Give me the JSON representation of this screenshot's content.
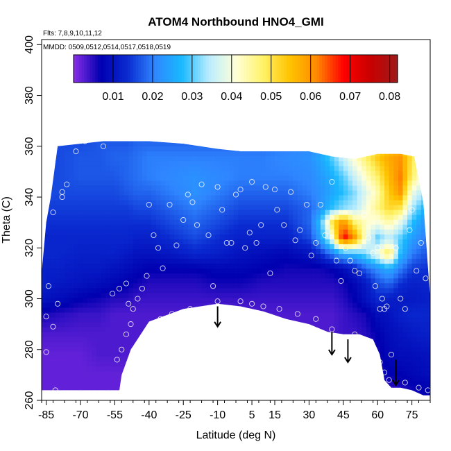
{
  "chart_data": {
    "type": "heatmap",
    "title": "ATOM4 Northbound HNO4_GMI",
    "subtitle_flights": "Flts: 7,8,9,10,11,12",
    "subtitle_dates": "MMDD: 0509,0512,0514,0517,0518,0519",
    "xlabel": "Latitude (deg N)",
    "ylabel": "Theta (C)",
    "xlim": [
      -87,
      83
    ],
    "ylim": [
      260,
      402
    ],
    "x_ticks": [
      -85,
      -70,
      -55,
      -40,
      -25,
      -10,
      5,
      15,
      30,
      45,
      60,
      75
    ],
    "y_ticks": [
      260,
      280,
      300,
      320,
      340,
      360,
      380,
      400
    ],
    "colorbar": {
      "min": 0.0,
      "max": 0.082,
      "ticks": [
        0.01,
        0.02,
        0.03,
        0.04,
        0.05,
        0.06,
        0.07,
        0.08
      ],
      "colors": [
        "#8b2fe8",
        "#0000b0",
        "#0a2ad0",
        "#2f86ff",
        "#19b8ff",
        "#b8ecff",
        "#ffffd9",
        "#fff36a",
        "#ffc400",
        "#ff8a00",
        "#ff0000",
        "#c80000",
        "#9e1b1b"
      ]
    },
    "field": {
      "lat": [
        -87,
        -80,
        -70,
        -62,
        -55,
        -50,
        -45,
        -40,
        -30,
        -20,
        -10,
        0,
        10,
        20,
        30,
        35,
        40,
        45,
        50,
        55,
        60,
        65,
        70,
        75,
        83
      ],
      "theta": [
        264,
        270,
        278,
        286,
        294,
        300,
        306,
        312,
        318,
        324,
        330,
        336,
        342,
        348,
        356,
        362
      ],
      "values": [
        [
          0.002,
          0.002,
          0.002,
          0.002,
          0.002,
          0.002,
          0.003,
          0.003,
          0.003,
          0.003,
          0.003,
          0.003,
          0.003,
          0.003,
          0.003,
          0.003,
          0.003,
          0.003,
          0.003,
          0.003,
          0.004,
          0.004,
          0.005,
          0.006,
          0.007
        ],
        [
          0.002,
          0.002,
          0.002,
          0.002,
          0.002,
          0.002,
          0.003,
          0.003,
          0.003,
          0.003,
          0.003,
          0.003,
          0.003,
          0.003,
          0.003,
          0.003,
          0.003,
          0.003,
          0.003,
          0.003,
          0.005,
          0.007,
          0.007,
          0.008,
          0.009
        ],
        [
          0.002,
          0.002,
          0.002,
          0.003,
          0.003,
          0.003,
          0.003,
          0.003,
          0.003,
          0.003,
          0.003,
          0.003,
          0.003,
          0.003,
          0.003,
          0.003,
          0.003,
          0.003,
          0.003,
          0.004,
          0.006,
          0.008,
          0.009,
          0.009,
          0.01
        ],
        [
          0.003,
          0.003,
          0.003,
          0.003,
          0.003,
          0.003,
          0.003,
          0.003,
          0.003,
          0.003,
          0.003,
          0.003,
          0.003,
          0.003,
          0.003,
          0.003,
          0.003,
          0.004,
          0.004,
          0.005,
          0.007,
          0.009,
          0.01,
          0.011,
          0.012
        ],
        [
          0.006,
          0.005,
          0.004,
          0.004,
          0.003,
          0.003,
          0.003,
          0.003,
          0.003,
          0.003,
          0.003,
          0.003,
          0.003,
          0.003,
          0.003,
          0.003,
          0.003,
          0.004,
          0.005,
          0.006,
          0.009,
          0.01,
          0.012,
          0.013,
          0.013
        ],
        [
          0.01,
          0.009,
          0.007,
          0.006,
          0.005,
          0.005,
          0.004,
          0.004,
          0.004,
          0.004,
          0.004,
          0.004,
          0.004,
          0.004,
          0.004,
          0.004,
          0.004,
          0.005,
          0.007,
          0.01,
          0.013,
          0.012,
          0.011,
          0.011,
          0.012
        ],
        [
          0.012,
          0.011,
          0.01,
          0.009,
          0.008,
          0.007,
          0.006,
          0.005,
          0.005,
          0.005,
          0.006,
          0.006,
          0.005,
          0.005,
          0.005,
          0.005,
          0.005,
          0.006,
          0.008,
          0.011,
          0.016,
          0.018,
          0.014,
          0.012,
          0.013
        ],
        [
          0.012,
          0.012,
          0.011,
          0.011,
          0.01,
          0.009,
          0.008,
          0.007,
          0.007,
          0.007,
          0.008,
          0.008,
          0.007,
          0.006,
          0.006,
          0.006,
          0.007,
          0.009,
          0.012,
          0.018,
          0.022,
          0.026,
          0.02,
          0.015,
          0.014
        ],
        [
          0.013,
          0.013,
          0.012,
          0.012,
          0.012,
          0.011,
          0.01,
          0.01,
          0.011,
          0.013,
          0.012,
          0.01,
          0.009,
          0.008,
          0.01,
          0.014,
          0.02,
          0.026,
          0.028,
          0.032,
          0.04,
          0.05,
          0.028,
          0.02,
          0.016
        ],
        [
          0.013,
          0.013,
          0.013,
          0.013,
          0.013,
          0.013,
          0.012,
          0.012,
          0.014,
          0.016,
          0.014,
          0.012,
          0.012,
          0.012,
          0.016,
          0.024,
          0.04,
          0.07,
          0.06,
          0.04,
          0.03,
          0.035,
          0.03,
          0.024,
          0.018
        ],
        [
          0.014,
          0.014,
          0.014,
          0.014,
          0.014,
          0.014,
          0.014,
          0.014,
          0.016,
          0.018,
          0.016,
          0.014,
          0.014,
          0.014,
          0.018,
          0.028,
          0.05,
          0.062,
          0.048,
          0.042,
          0.04,
          0.044,
          0.038,
          0.028,
          0.02
        ],
        [
          0.015,
          0.015,
          0.015,
          0.015,
          0.015,
          0.015,
          0.016,
          0.016,
          0.018,
          0.02,
          0.018,
          0.016,
          0.016,
          0.016,
          0.018,
          0.022,
          0.028,
          0.032,
          0.034,
          0.04,
          0.046,
          0.052,
          0.05,
          0.034,
          0.024
        ],
        [
          0.016,
          0.016,
          0.016,
          0.016,
          0.016,
          0.017,
          0.018,
          0.018,
          0.02,
          0.022,
          0.02,
          0.018,
          0.018,
          0.018,
          0.02,
          0.022,
          0.025,
          0.028,
          0.032,
          0.038,
          0.044,
          0.054,
          0.06,
          0.04,
          0.03
        ],
        [
          0.016,
          0.016,
          0.017,
          0.017,
          0.017,
          0.018,
          0.019,
          0.02,
          0.021,
          0.022,
          0.021,
          0.02,
          0.02,
          0.02,
          0.021,
          0.023,
          0.026,
          0.03,
          0.036,
          0.042,
          0.048,
          0.056,
          0.062,
          0.048,
          0.035
        ],
        [
          0.016,
          0.016,
          0.017,
          0.017,
          0.018,
          0.018,
          0.019,
          0.02,
          0.02,
          0.02,
          0.02,
          0.02,
          0.02,
          0.021,
          0.022,
          0.025,
          0.03,
          0.036,
          0.042,
          0.048,
          0.054,
          0.058,
          0.06,
          0.05,
          0.04
        ],
        [
          0.016,
          0.016,
          0.016,
          0.017,
          0.017,
          0.017,
          0.018,
          0.018,
          0.018,
          0.018,
          0.018,
          0.018,
          0.018,
          0.019,
          0.02,
          0.022,
          0.026,
          0.03,
          0.034,
          0.04,
          0.046,
          0.05,
          0.052,
          0.046,
          0.04
        ]
      ]
    },
    "domain": {
      "top": [
        [
          -80,
          360
        ],
        [
          -70,
          361
        ],
        [
          -60,
          362
        ],
        [
          -50,
          362
        ],
        [
          -40,
          362
        ],
        [
          -25,
          361
        ],
        [
          -10,
          359
        ],
        [
          0,
          358
        ],
        [
          10,
          358
        ],
        [
          20,
          358
        ],
        [
          30,
          358
        ],
        [
          40,
          356
        ],
        [
          50,
          355
        ],
        [
          60,
          357
        ],
        [
          70,
          357
        ],
        [
          76,
          356
        ],
        [
          80,
          338
        ],
        [
          83,
          300
        ]
      ],
      "bottom": [
        [
          83,
          262
        ],
        [
          80,
          262
        ],
        [
          75,
          264
        ],
        [
          70,
          265
        ],
        [
          66,
          265
        ],
        [
          63,
          268
        ],
        [
          61,
          278
        ],
        [
          58,
          284
        ],
        [
          52,
          286
        ],
        [
          45,
          286
        ],
        [
          38,
          287
        ],
        [
          30,
          290
        ],
        [
          20,
          292
        ],
        [
          10,
          295
        ],
        [
          0,
          297
        ],
        [
          -10,
          298
        ],
        [
          -25,
          296
        ],
        [
          -40,
          291
        ],
        [
          -48,
          280
        ],
        [
          -52,
          270
        ],
        [
          -53,
          264
        ],
        [
          -87,
          264
        ]
      ],
      "left": [
        [
          -87,
          264
        ],
        [
          -87,
          310
        ],
        [
          -85,
          330
        ],
        [
          -83,
          340
        ],
        [
          -80,
          360
        ]
      ]
    },
    "observations": [
      [
        -85,
        279
      ],
      [
        -82,
        289
      ],
      [
        -80,
        298
      ],
      [
        -78,
        342
      ],
      [
        -76,
        345
      ],
      [
        -72,
        358
      ],
      [
        -68,
        362
      ],
      [
        -60,
        360
      ],
      [
        -56,
        302
      ],
      [
        -53,
        304
      ],
      [
        -50,
        306
      ],
      [
        -49,
        298
      ],
      [
        -47,
        296
      ],
      [
        -45,
        300
      ],
      [
        -43,
        304
      ],
      [
        -41,
        309
      ],
      [
        -40,
        337
      ],
      [
        -38,
        325
      ],
      [
        -36,
        320
      ],
      [
        -34,
        312
      ],
      [
        -31,
        337
      ],
      [
        -28,
        321
      ],
      [
        -25,
        331
      ],
      [
        -23,
        341
      ],
      [
        -21,
        338
      ],
      [
        -19,
        329
      ],
      [
        -17,
        345
      ],
      [
        -14,
        325
      ],
      [
        -12,
        305
      ],
      [
        -10,
        344
      ],
      [
        -8,
        335
      ],
      [
        -6,
        322
      ],
      [
        -4,
        322
      ],
      [
        -2,
        341
      ],
      [
        0,
        343
      ],
      [
        2,
        320
      ],
      [
        4,
        326
      ],
      [
        5,
        346
      ],
      [
        7,
        322
      ],
      [
        9,
        329
      ],
      [
        11,
        344
      ],
      [
        13,
        310
      ],
      [
        15,
        343
      ],
      [
        16,
        335
      ],
      [
        19,
        329
      ],
      [
        22,
        342
      ],
      [
        24,
        323
      ],
      [
        26,
        327
      ],
      [
        29,
        337
      ],
      [
        31,
        317
      ],
      [
        33,
        322
      ],
      [
        35,
        337
      ],
      [
        37,
        325
      ],
      [
        40,
        346
      ],
      [
        42,
        315
      ],
      [
        44,
        307
      ],
      [
        46,
        320
      ],
      [
        48,
        315
      ],
      [
        50,
        311
      ],
      [
        52,
        310
      ],
      [
        54,
        333
      ],
      [
        56,
        324
      ],
      [
        58,
        318
      ],
      [
        59,
        305
      ],
      [
        60,
        320
      ],
      [
        61,
        296
      ],
      [
        62,
        300
      ],
      [
        63,
        296
      ],
      [
        64,
        297
      ],
      [
        65,
        268
      ],
      [
        66,
        278
      ],
      [
        68,
        320
      ],
      [
        70,
        300
      ],
      [
        72,
        296
      ],
      [
        74,
        327
      ],
      [
        75,
        335
      ],
      [
        77,
        311
      ],
      [
        79,
        322
      ],
      [
        81,
        308
      ],
      [
        82,
        264
      ],
      [
        -54,
        276
      ],
      [
        -52,
        280
      ],
      [
        -50,
        286
      ],
      [
        -48,
        290
      ],
      [
        -40,
        289
      ],
      [
        -35,
        292
      ],
      [
        -30,
        294
      ],
      [
        -22,
        296
      ],
      [
        -10,
        299
      ],
      [
        0,
        299
      ],
      [
        5,
        298
      ],
      [
        10,
        297
      ],
      [
        17,
        296
      ],
      [
        25,
        294
      ],
      [
        33,
        292
      ],
      [
        40,
        288
      ],
      [
        50,
        286
      ],
      [
        57,
        282
      ],
      [
        61,
        275
      ],
      [
        63,
        271
      ],
      [
        72,
        267
      ],
      [
        78,
        265
      ],
      [
        -81,
        264
      ],
      [
        -85,
        293
      ],
      [
        -84,
        305
      ],
      [
        -82,
        334
      ],
      [
        -78,
        340
      ]
    ],
    "arrows": [
      {
        "x": -10,
        "y_top": 297,
        "y_tip": 289
      },
      {
        "x": 40,
        "y_top": 287,
        "y_tip": 278
      },
      {
        "x": 47,
        "y_top": 284,
        "y_tip": 275
      },
      {
        "x": 68,
        "y_top": 276,
        "y_tip": 266
      }
    ]
  }
}
